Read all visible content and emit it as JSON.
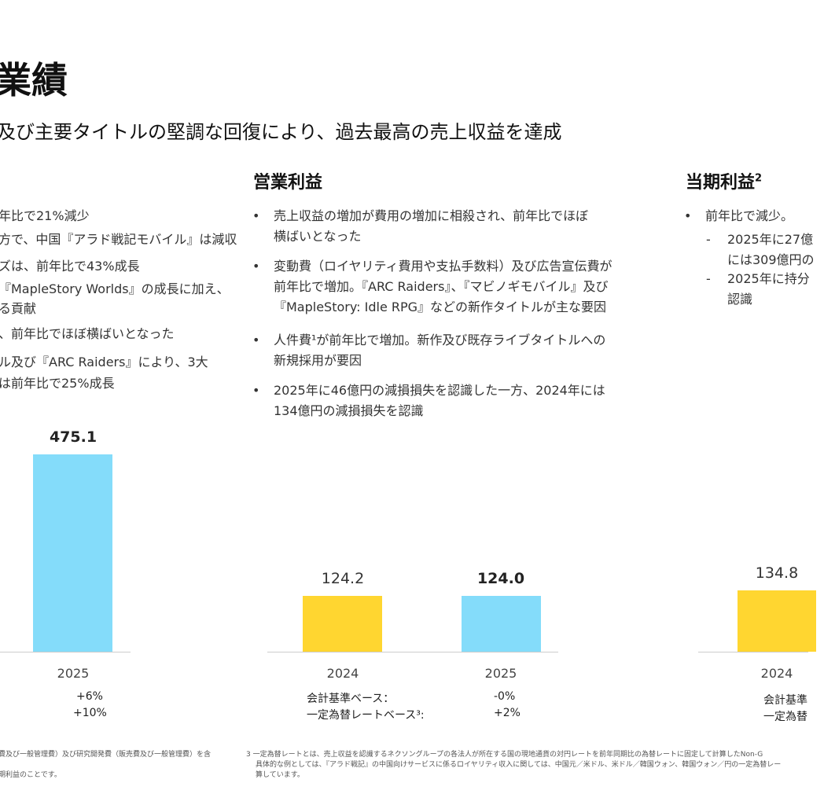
{
  "header": {
    "title": "業績",
    "subtitle": "及び主要タイトルの堅調な回復により、過去最高の売上収益を達成"
  },
  "left": {
    "lines": [
      "年比で21%減少",
      "方で、中国『アラド戦記モバイル』は減収",
      "ズは、前年比で43%成長",
      "『MapleStory Worlds』の成長に加え、",
      "る貢献",
      "、前年比でほぼ横ばいとなった",
      "ル及び『ARC Raiders』により、3大",
      "は前年比で25%成長"
    ],
    "bar_value": "475.1",
    "year": "2025",
    "stat1": "+6%",
    "stat2": "+10%"
  },
  "operating": {
    "title": "営業利益",
    "bullets": [
      [
        "売上収益の増加が費用の増加に相殺され、前年比でほぼ",
        "横ばいとなった"
      ],
      [
        "変動費（ロイヤリティ費用や支払手数料）及び広告宣伝費が",
        "前年比で増加。『ARC Raiders』、『マビノギモバイル』及び",
        "『MapleStory: Idle RPG』などの新作タイトルが主な要因"
      ],
      [
        "人件費¹が前年比で増加。新作及び既存ライブタイトルへの",
        "新規採用が要因"
      ],
      [
        "2025年に46億円の減損損失を認識した一方、2024年には",
        "134億円の減損損失を認識"
      ]
    ],
    "bars": [
      {
        "year": "2024",
        "label": "124.2",
        "value": 124.2
      },
      {
        "year": "2025",
        "label": "124.0",
        "value": 124.0
      }
    ],
    "stat_labels": [
      "会計基準ベース：",
      "一定為替レートベース³:"
    ],
    "stat_values": [
      "-0%",
      "+2%"
    ]
  },
  "net": {
    "title": "当期利益",
    "sup": "2",
    "bullet": "前年比で減少。",
    "subs": [
      [
        "2025年に27億",
        "には309億円の"
      ],
      [
        "2025年に持分",
        "認識"
      ]
    ],
    "bar_label": "134.8",
    "year": "2024",
    "stat_labels": [
      "会計基準",
      "一定為替"
    ]
  },
  "footnotes": {
    "left": [
      "費及び一般管理費）及び研究開発費（販売費及び一般管理費）を含",
      "",
      "期利益のことです。"
    ],
    "right": [
      "3 一定為替レートとは、売上収益を認識するネクソングループの各法人が所在する国の現地通貨の対円レートを前年同期比の為替レートに固定して計算したNon-G",
      "具体的な例としては、『アラド戦記』の中国向けサービスに係るロイヤリティ収入に関しては、中国元／米ドル、米ドル／韓国ウォン、韓国ウォン／円の一定為替レー",
      "算しています。"
    ]
  },
  "colors": {
    "blue_bar": "#84DCFA",
    "yellow_bar": "#FFD630",
    "bar_scale_max": 475.1
  }
}
